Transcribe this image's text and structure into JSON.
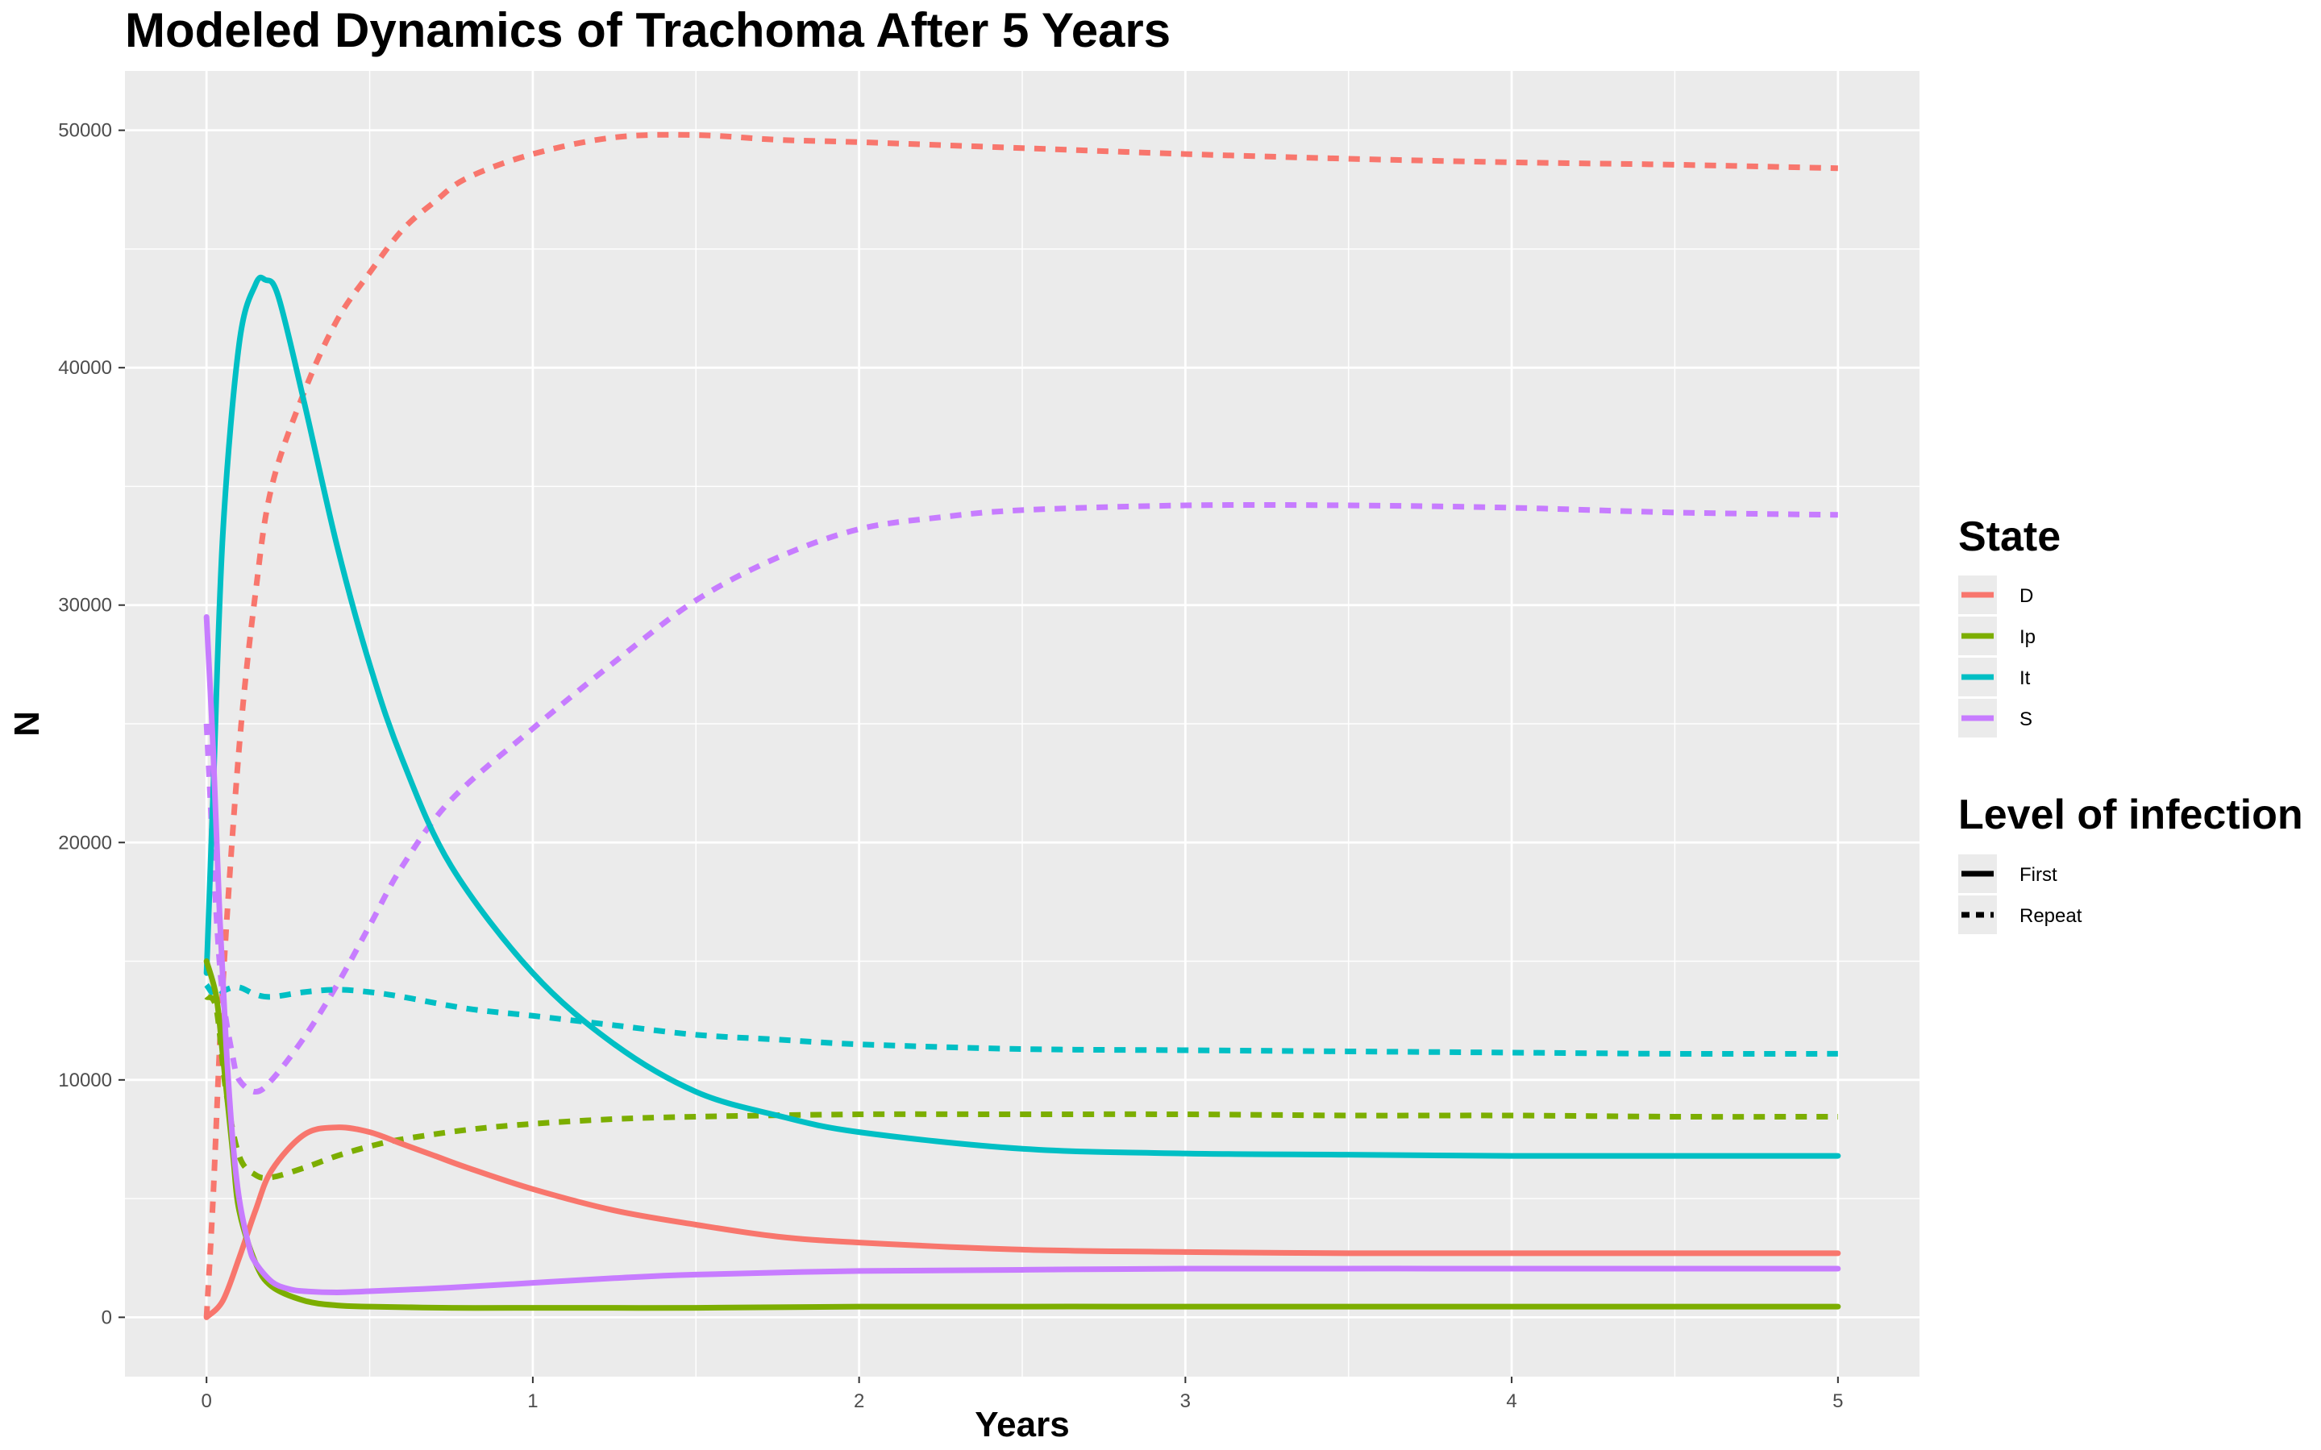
{
  "chart_data": {
    "type": "line",
    "title": "Modeled Dynamics of Trachoma After 5 Years",
    "xlabel": "Years",
    "ylabel": "N",
    "xlim": [
      -0.25,
      5.25
    ],
    "ylim": [
      -2500,
      52500
    ],
    "x_ticks": [
      0,
      1,
      2,
      3,
      4,
      5
    ],
    "x_tick_labels": [
      "0",
      "1",
      "2",
      "3",
      "4",
      "5"
    ],
    "y_ticks": [
      0,
      10000,
      20000,
      30000,
      40000,
      50000
    ],
    "y_tick_labels": [
      "0",
      "10000",
      "20000",
      "30000",
      "40000",
      "50000"
    ],
    "grid": true,
    "legend_position": "right",
    "legends": [
      {
        "title": "State",
        "entries": [
          {
            "label": "D",
            "color": "#F8766D"
          },
          {
            "label": "Ip",
            "color": "#7CAE00"
          },
          {
            "label": "It",
            "color": "#00BFC4"
          },
          {
            "label": "S",
            "color": "#C77CFF"
          }
        ]
      },
      {
        "title": "Level of infection",
        "entries": [
          {
            "label": "First",
            "linetype": "solid"
          },
          {
            "label": "Repeat",
            "linetype": "dashed"
          }
        ]
      }
    ],
    "series": [
      {
        "state": "D",
        "level": "First",
        "color": "#F8766D",
        "points": [
          [
            0,
            0
          ],
          [
            0.05,
            700
          ],
          [
            0.1,
            2500
          ],
          [
            0.15,
            4500
          ],
          [
            0.2,
            6200
          ],
          [
            0.3,
            7700
          ],
          [
            0.4,
            8000
          ],
          [
            0.5,
            7800
          ],
          [
            0.6,
            7300
          ],
          [
            0.7,
            6800
          ],
          [
            0.8,
            6300
          ],
          [
            1.0,
            5400
          ],
          [
            1.25,
            4500
          ],
          [
            1.5,
            3900
          ],
          [
            1.75,
            3400
          ],
          [
            2.0,
            3150
          ],
          [
            2.5,
            2850
          ],
          [
            3.0,
            2750
          ],
          [
            3.5,
            2700
          ],
          [
            4.0,
            2700
          ],
          [
            4.5,
            2700
          ],
          [
            5.0,
            2700
          ]
        ]
      },
      {
        "state": "D",
        "level": "Repeat",
        "color": "#F8766D",
        "points": [
          [
            0,
            0
          ],
          [
            0.02,
            5000
          ],
          [
            0.05,
            14000
          ],
          [
            0.1,
            24000
          ],
          [
            0.15,
            30500
          ],
          [
            0.2,
            35000
          ],
          [
            0.3,
            39000
          ],
          [
            0.4,
            42000
          ],
          [
            0.5,
            44000
          ],
          [
            0.6,
            45800
          ],
          [
            0.7,
            47000
          ],
          [
            0.8,
            48000
          ],
          [
            1.0,
            49000
          ],
          [
            1.25,
            49700
          ],
          [
            1.5,
            49800
          ],
          [
            1.75,
            49600
          ],
          [
            2.0,
            49500
          ],
          [
            2.5,
            49250
          ],
          [
            3.0,
            49000
          ],
          [
            3.5,
            48800
          ],
          [
            4.0,
            48650
          ],
          [
            4.5,
            48550
          ],
          [
            5.0,
            48400
          ]
        ]
      },
      {
        "state": "Ip",
        "level": "First",
        "color": "#7CAE00",
        "points": [
          [
            0,
            15000
          ],
          [
            0.03,
            13500
          ],
          [
            0.05,
            11000
          ],
          [
            0.08,
            7000
          ],
          [
            0.1,
            4500
          ],
          [
            0.15,
            2300
          ],
          [
            0.2,
            1300
          ],
          [
            0.3,
            700
          ],
          [
            0.4,
            500
          ],
          [
            0.5,
            450
          ],
          [
            0.75,
            400
          ],
          [
            1.0,
            400
          ],
          [
            1.5,
            400
          ],
          [
            2.0,
            450
          ],
          [
            3.0,
            450
          ],
          [
            4.0,
            450
          ],
          [
            5.0,
            450
          ]
        ]
      },
      {
        "state": "Ip",
        "level": "Repeat",
        "color": "#7CAE00",
        "points": [
          [
            0,
            13500
          ],
          [
            0.03,
            13000
          ],
          [
            0.06,
            9500
          ],
          [
            0.1,
            6800
          ],
          [
            0.15,
            6000
          ],
          [
            0.2,
            5900
          ],
          [
            0.3,
            6300
          ],
          [
            0.4,
            6800
          ],
          [
            0.5,
            7200
          ],
          [
            0.6,
            7500
          ],
          [
            0.8,
            7900
          ],
          [
            1.0,
            8150
          ],
          [
            1.25,
            8350
          ],
          [
            1.5,
            8450
          ],
          [
            2.0,
            8550
          ],
          [
            2.5,
            8550
          ],
          [
            3.0,
            8550
          ],
          [
            3.5,
            8500
          ],
          [
            4.0,
            8500
          ],
          [
            4.5,
            8450
          ],
          [
            5.0,
            8450
          ]
        ]
      },
      {
        "state": "It",
        "level": "First",
        "color": "#00BFC4",
        "points": [
          [
            0,
            14500
          ],
          [
            0.02,
            22000
          ],
          [
            0.05,
            33000
          ],
          [
            0.1,
            41000
          ],
          [
            0.15,
            43500
          ],
          [
            0.18,
            43700
          ],
          [
            0.22,
            43000
          ],
          [
            0.3,
            38500
          ],
          [
            0.4,
            32500
          ],
          [
            0.5,
            27500
          ],
          [
            0.6,
            23500
          ],
          [
            0.75,
            19000
          ],
          [
            1.0,
            14500
          ],
          [
            1.25,
            11500
          ],
          [
            1.5,
            9500
          ],
          [
            1.75,
            8500
          ],
          [
            2.0,
            7800
          ],
          [
            2.5,
            7100
          ],
          [
            3.0,
            6900
          ],
          [
            3.5,
            6850
          ],
          [
            4.0,
            6800
          ],
          [
            4.5,
            6800
          ],
          [
            5.0,
            6800
          ]
        ]
      },
      {
        "state": "It",
        "level": "Repeat",
        "color": "#00BFC4",
        "points": [
          [
            0,
            14000
          ],
          [
            0.03,
            13500
          ],
          [
            0.06,
            13800
          ],
          [
            0.1,
            13900
          ],
          [
            0.15,
            13600
          ],
          [
            0.2,
            13500
          ],
          [
            0.3,
            13700
          ],
          [
            0.4,
            13800
          ],
          [
            0.5,
            13700
          ],
          [
            0.6,
            13500
          ],
          [
            0.8,
            13000
          ],
          [
            1.0,
            12700
          ],
          [
            1.25,
            12300
          ],
          [
            1.5,
            11900
          ],
          [
            1.75,
            11700
          ],
          [
            2.0,
            11500
          ],
          [
            2.5,
            11300
          ],
          [
            3.0,
            11250
          ],
          [
            3.5,
            11200
          ],
          [
            4.0,
            11150
          ],
          [
            4.5,
            11100
          ],
          [
            5.0,
            11100
          ]
        ]
      },
      {
        "state": "S",
        "level": "First",
        "color": "#C77CFF",
        "points": [
          [
            0,
            29500
          ],
          [
            0.02,
            24000
          ],
          [
            0.04,
            17000
          ],
          [
            0.06,
            11500
          ],
          [
            0.08,
            7500
          ],
          [
            0.1,
            5000
          ],
          [
            0.13,
            3000
          ],
          [
            0.15,
            2300
          ],
          [
            0.2,
            1500
          ],
          [
            0.25,
            1200
          ],
          [
            0.3,
            1100
          ],
          [
            0.4,
            1050
          ],
          [
            0.5,
            1100
          ],
          [
            0.75,
            1250
          ],
          [
            1.0,
            1450
          ],
          [
            1.25,
            1650
          ],
          [
            1.5,
            1800
          ],
          [
            2.0,
            1950
          ],
          [
            2.5,
            2000
          ],
          [
            3.0,
            2050
          ],
          [
            4.0,
            2050
          ],
          [
            5.0,
            2050
          ]
        ]
      },
      {
        "state": "S",
        "level": "Repeat",
        "color": "#C77CFF",
        "points": [
          [
            0,
            25000
          ],
          [
            0.03,
            17000
          ],
          [
            0.05,
            13500
          ],
          [
            0.08,
            11000
          ],
          [
            0.1,
            10000
          ],
          [
            0.15,
            9500
          ],
          [
            0.2,
            10000
          ],
          [
            0.3,
            11800
          ],
          [
            0.4,
            14000
          ],
          [
            0.5,
            16500
          ],
          [
            0.6,
            19000
          ],
          [
            0.75,
            21800
          ],
          [
            1.0,
            24800
          ],
          [
            1.25,
            27600
          ],
          [
            1.5,
            30200
          ],
          [
            1.75,
            32000
          ],
          [
            2.0,
            33200
          ],
          [
            2.25,
            33700
          ],
          [
            2.5,
            34000
          ],
          [
            3.0,
            34200
          ],
          [
            3.5,
            34200
          ],
          [
            4.0,
            34100
          ],
          [
            4.5,
            33900
          ],
          [
            5.0,
            33800
          ]
        ]
      }
    ]
  }
}
